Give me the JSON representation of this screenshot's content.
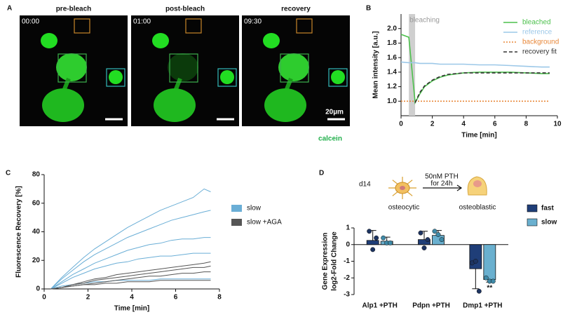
{
  "panel_labels": [
    "A",
    "B",
    "C",
    "D"
  ],
  "panel_a": {
    "frames": [
      {
        "title": "pre-bleach",
        "time": "00:00"
      },
      {
        "title": "post-bleach",
        "time": "01:00"
      },
      {
        "title": "recovery",
        "time": "09:30"
      }
    ],
    "scale_bar": "20µm",
    "stain": "calcein"
  },
  "chart_data": [
    {
      "type": "line",
      "axis_label_x": "Time [min]",
      "axis_label_y": "Mean intensity [a.u.]",
      "x": [
        0,
        0.5,
        0.9,
        1.2,
        1.5,
        2,
        2.5,
        3,
        4,
        5,
        6,
        7,
        8,
        9,
        9.5
      ],
      "series": [
        {
          "name": "bleached",
          "color": "#4cc04c",
          "style": "solid",
          "values": [
            1.92,
            1.88,
            0.98,
            1.1,
            1.2,
            1.28,
            1.33,
            1.36,
            1.39,
            1.4,
            1.4,
            1.4,
            1.39,
            1.38,
            1.38
          ]
        },
        {
          "name": "reference",
          "color": "#9cc8e8",
          "style": "solid",
          "values": [
            1.54,
            1.53,
            1.53,
            1.52,
            1.52,
            1.52,
            1.51,
            1.51,
            1.51,
            1.5,
            1.5,
            1.49,
            1.48,
            1.47,
            1.47
          ]
        },
        {
          "name": "background",
          "color": "#e8883a",
          "style": "dotted",
          "values": [
            1,
            1,
            1,
            1,
            1,
            1,
            1,
            1,
            1,
            1,
            1,
            1,
            1,
            1,
            1
          ]
        },
        {
          "name": "recovery fit",
          "color": "#333333",
          "style": "dashed",
          "values": [
            null,
            null,
            0.98,
            1.12,
            1.21,
            1.29,
            1.34,
            1.37,
            1.39,
            1.39,
            1.39,
            1.39,
            1.39,
            1.39,
            1.39
          ]
        }
      ],
      "shaded_region": {
        "label": "bleaching",
        "x": [
          0.5,
          0.9
        ]
      },
      "xlim": [
        0,
        10
      ],
      "xticks": [
        0,
        2,
        4,
        6,
        8,
        10
      ],
      "ylim": [
        0.8,
        2.2
      ],
      "yticks": [
        {
          "value": 1,
          "label": "1.0"
        },
        {
          "value": 1.2,
          "label": "1.2"
        },
        {
          "value": 1.4,
          "label": "1.4"
        },
        {
          "value": 1.6,
          "label": "1.6"
        },
        {
          "value": 1.8,
          "label": "1.8"
        },
        {
          "value": 2,
          "label": "2.0"
        }
      ]
    },
    {
      "type": "line",
      "axis_label_x": "Time [min]",
      "axis_label_y": "Fluorescence Recovery [%]",
      "x": [
        0.3,
        0.8,
        1.3,
        1.8,
        2.3,
        2.8,
        3.3,
        3.8,
        4.3,
        4.8,
        5.3,
        5.8,
        6.3,
        6.8,
        7.3,
        7.6
      ],
      "series": [
        {
          "name": "slow",
          "color": "#6aaed6",
          "traces": [
            [
              0,
              8,
              15,
              22,
              28,
              33,
              38,
              43,
              47,
              51,
              55,
              58,
              61,
              64,
              70,
              68
            ],
            [
              0,
              7,
              13,
              19,
              24,
              28,
              32,
              36,
              39,
              42,
              45,
              48,
              50,
              52,
              54,
              55
            ],
            [
              0,
              5,
              10,
              14,
              18,
              21,
              24,
              27,
              29,
              31,
              32,
              34,
              35,
              35,
              36,
              36
            ],
            [
              0,
              4,
              8,
              11,
              14,
              16,
              18,
              19,
              21,
              22,
              23,
              23,
              24,
              25,
              25,
              25
            ],
            [
              0,
              2,
              3,
              4,
              5,
              5,
              6,
              6,
              6,
              6,
              7,
              7,
              7,
              7,
              7,
              7
            ]
          ]
        },
        {
          "name": "slow +AGA",
          "color": "#555555",
          "traces": [
            [
              0,
              1,
              3,
              5,
              7,
              8,
              10,
              11,
              12,
              13,
              14,
              15,
              16,
              17,
              18,
              19
            ],
            [
              0,
              1,
              3,
              4,
              6,
              7,
              8,
              9,
              10,
              11,
              12,
              13,
              14,
              15,
              15,
              16
            ],
            [
              0,
              1,
              2,
              3,
              4,
              5,
              6,
              7,
              8,
              9,
              9,
              10,
              11,
              11,
              12,
              12
            ],
            [
              0,
              1,
              2,
              3,
              3,
              4,
              4,
              5,
              5,
              5,
              6,
              6,
              6,
              6,
              6,
              6
            ]
          ]
        }
      ],
      "xlim": [
        0,
        8
      ],
      "xticks": [
        0,
        2,
        4,
        6,
        8
      ],
      "ylim": [
        0,
        80
      ],
      "yticks": [
        0,
        20,
        40,
        60,
        80
      ]
    },
    {
      "type": "bar",
      "axis_label_y": [
        "Gene Expression",
        "log2-Fold Change"
      ],
      "categories": [
        "Alp1 +PTH",
        "Pdpn +PTH",
        "Dmp1 +PTH"
      ],
      "series": [
        {
          "name": "fast",
          "color": "#1f3e78",
          "values": [
            0.25,
            0.3,
            -1.45
          ],
          "errors": [
            0.6,
            0.5,
            1.2
          ],
          "points": [
            [
              0.8,
              -0.3,
              0.4
            ],
            [
              0.7,
              -0.2,
              0.3
            ],
            [
              -1.1,
              -1.0,
              -2.8
            ]
          ]
        },
        {
          "name": "slow",
          "color": "#6ab0cf",
          "values": [
            0.2,
            0.55,
            -2.1
          ],
          "errors": [
            0.25,
            0.3,
            0.15
          ],
          "points": [
            [
              0.4,
              0.1,
              0.1
            ],
            [
              0.8,
              0.6,
              0.3
            ],
            [
              -2.0,
              -2.2,
              -2.2
            ]
          ]
        }
      ],
      "annotation": "**",
      "schematic": {
        "day": "d14",
        "treatment": [
          "50nM PTH",
          "for 24h"
        ],
        "from": "osteocytic",
        "to": "osteoblastic"
      },
      "ylim": [
        -3,
        1
      ],
      "yticks": [
        -3,
        -2,
        -1,
        0,
        1
      ]
    }
  ]
}
